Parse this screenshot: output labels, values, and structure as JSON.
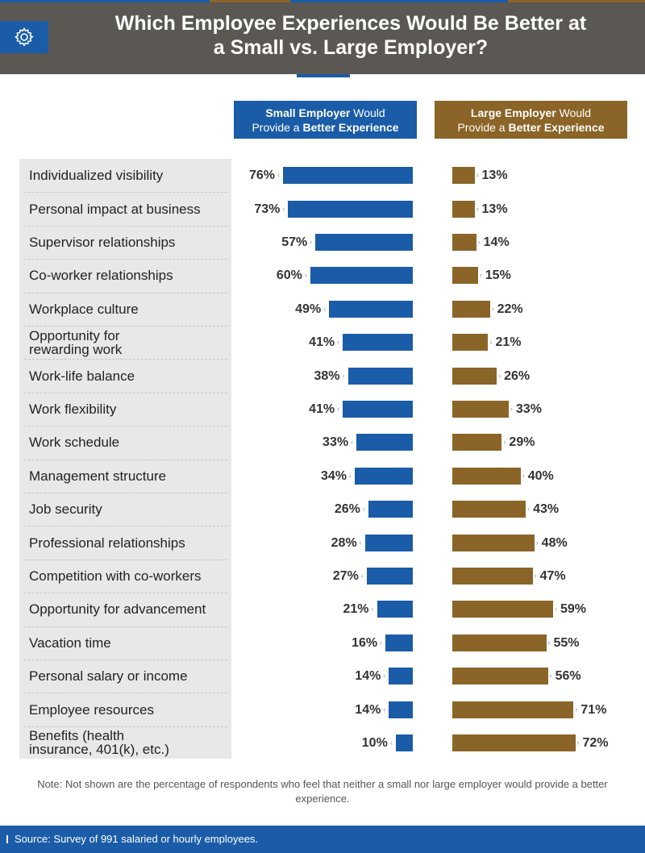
{
  "header": {
    "title_line1": "Which Employee Experiences Would Be Better at",
    "title_line2": "a Small vs. Large Employer?",
    "icon": "gear-icon"
  },
  "legend": {
    "small": {
      "bold1": "Small Employer",
      "rest1": " Would",
      "line2a": "Provide a ",
      "bold2": "Better Experience"
    },
    "large": {
      "bold1": "Large Employer",
      "rest1": " Would",
      "line2a": "Provide a ",
      "bold2": "Better Experience"
    }
  },
  "colors": {
    "small": "#1a5ca8",
    "large": "#8b6427",
    "header": "#5b5752"
  },
  "chart_data": {
    "type": "bar",
    "orientation": "horizontal-diverging",
    "title": "Which Employee Experiences Would Be Better at a Small vs. Large Employer?",
    "unit": "%",
    "categories": [
      "Individualized visibility",
      "Personal impact at business",
      "Supervisor relationships",
      "Co-worker relationships",
      "Workplace culture",
      "Opportunity for rewarding work",
      "Work-life balance",
      "Work flexibility",
      "Work schedule",
      "Management structure",
      "Job security",
      "Professional relationships",
      "Competition with co-workers",
      "Opportunity for advancement",
      "Vacation time",
      "Personal salary or income",
      "Employee resources",
      "Benefits (health insurance, 401(k), etc.)"
    ],
    "label_lines": [
      [
        "Individualized visibility"
      ],
      [
        "Personal impact at business"
      ],
      [
        "Supervisor relationships"
      ],
      [
        "Co-worker relationships"
      ],
      [
        "Workplace culture"
      ],
      [
        "Opportunity for",
        "rewarding work"
      ],
      [
        "Work-life balance"
      ],
      [
        "Work flexibility"
      ],
      [
        "Work schedule"
      ],
      [
        "Management structure"
      ],
      [
        "Job security"
      ],
      [
        "Professional relationships"
      ],
      [
        "Competition with co-workers"
      ],
      [
        "Opportunity for advancement"
      ],
      [
        "Vacation time"
      ],
      [
        "Personal salary or income"
      ],
      [
        "Employee resources"
      ],
      [
        "Benefits (health",
        "insurance, 401(k), etc.)"
      ]
    ],
    "series": [
      {
        "name": "Small Employer Would Provide a Better Experience",
        "values": [
          76,
          73,
          57,
          60,
          49,
          41,
          38,
          41,
          33,
          34,
          26,
          28,
          27,
          21,
          16,
          14,
          14,
          10
        ]
      },
      {
        "name": "Large Employer Would Provide a Better Experience",
        "values": [
          13,
          13,
          14,
          15,
          22,
          21,
          26,
          33,
          29,
          40,
          43,
          48,
          47,
          59,
          55,
          56,
          71,
          72
        ]
      }
    ]
  },
  "note": "Note: Not shown are the percentage of respondents who feel that neither a small nor large employer would provide a better experience.",
  "footer": {
    "source": "Source: Survey of 991 salaried or hourly employees."
  }
}
